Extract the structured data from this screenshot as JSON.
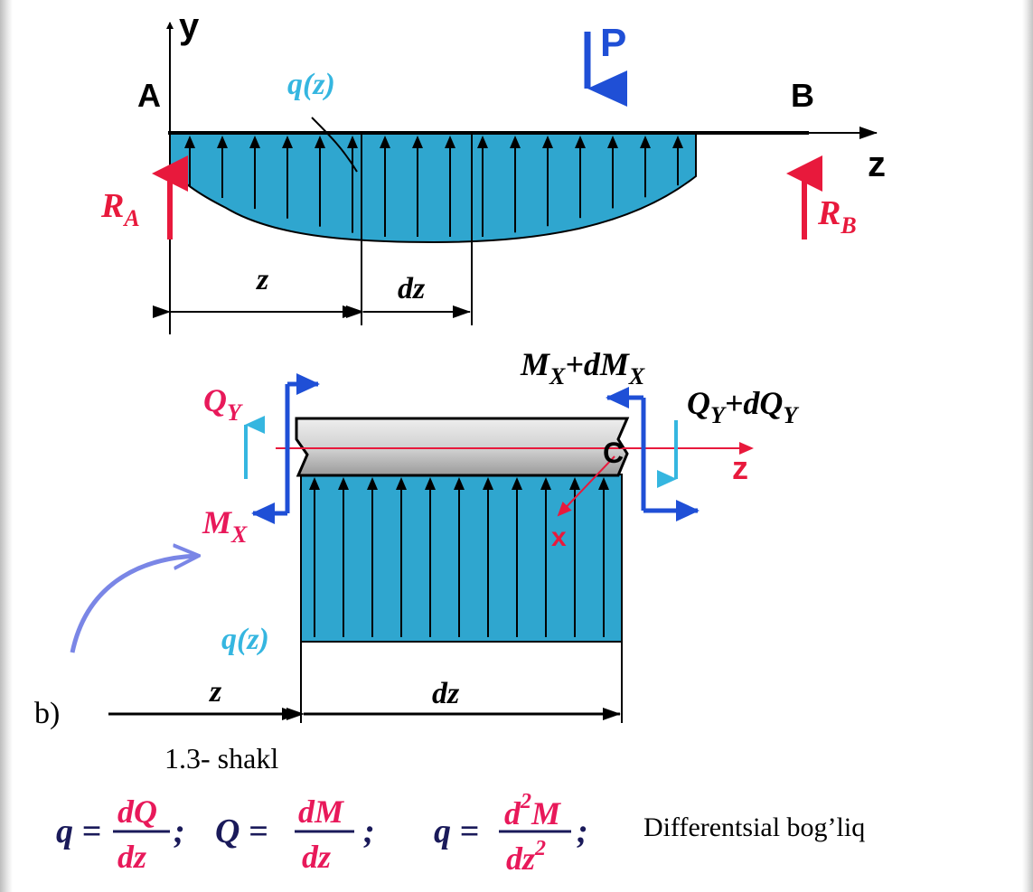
{
  "top": {
    "label_A": "A",
    "label_B": "B",
    "label_y": "y",
    "label_z_axis": "z",
    "label_P": "P",
    "label_q": "q(z)",
    "label_RA": "R",
    "label_RA_sub": "A",
    "label_RB": "R",
    "label_RB_sub": "B",
    "dim_z": "z",
    "dim_dz": "dz"
  },
  "bottom": {
    "label_MX_dMX": "M",
    "label_MX_dMX_sub": "X",
    "label_MX_dMX_plus": "+dM",
    "label_MX_dMX_sub2": "X",
    "label_QY_dQY": "Q",
    "label_QY_dQY_sub": "Y",
    "label_QY_dQY_plus": "+dQ",
    "label_QY_dQY_sub2": "Y",
    "label_QY": "Q",
    "label_QY_sub": "Y",
    "label_MX": "M",
    "label_MX_sub": "X",
    "label_C": "C",
    "label_z": "z",
    "label_x": "x",
    "label_q": "q(z)",
    "dim_z": "z",
    "dim_dz": "dz",
    "label_b": "b)"
  },
  "caption": "1.3- shakl",
  "formulas": {
    "f1_lhs": "q =",
    "f1_num": "dQ",
    "f1_den": "dz",
    "f1_sep": ";",
    "f2_lhs": "Q =",
    "f2_num": "dM",
    "f2_den": "dz",
    "f2_sep": ";",
    "f3_lhs": "q =",
    "f3_num": "d",
    "f3_num_sup": "2",
    "f3_num_M": "M",
    "f3_den": "dz",
    "f3_den_sup": "2",
    "f3_sep": ";",
    "note": "Differentsial bog’liq"
  },
  "colors": {
    "load_fill": "#2fa6cf",
    "red": "#e8193c",
    "blue": "#1f4fd6",
    "cyan": "#35b6e0",
    "pink_text": "#e8195a",
    "navy_text": "#1a1a5a"
  }
}
